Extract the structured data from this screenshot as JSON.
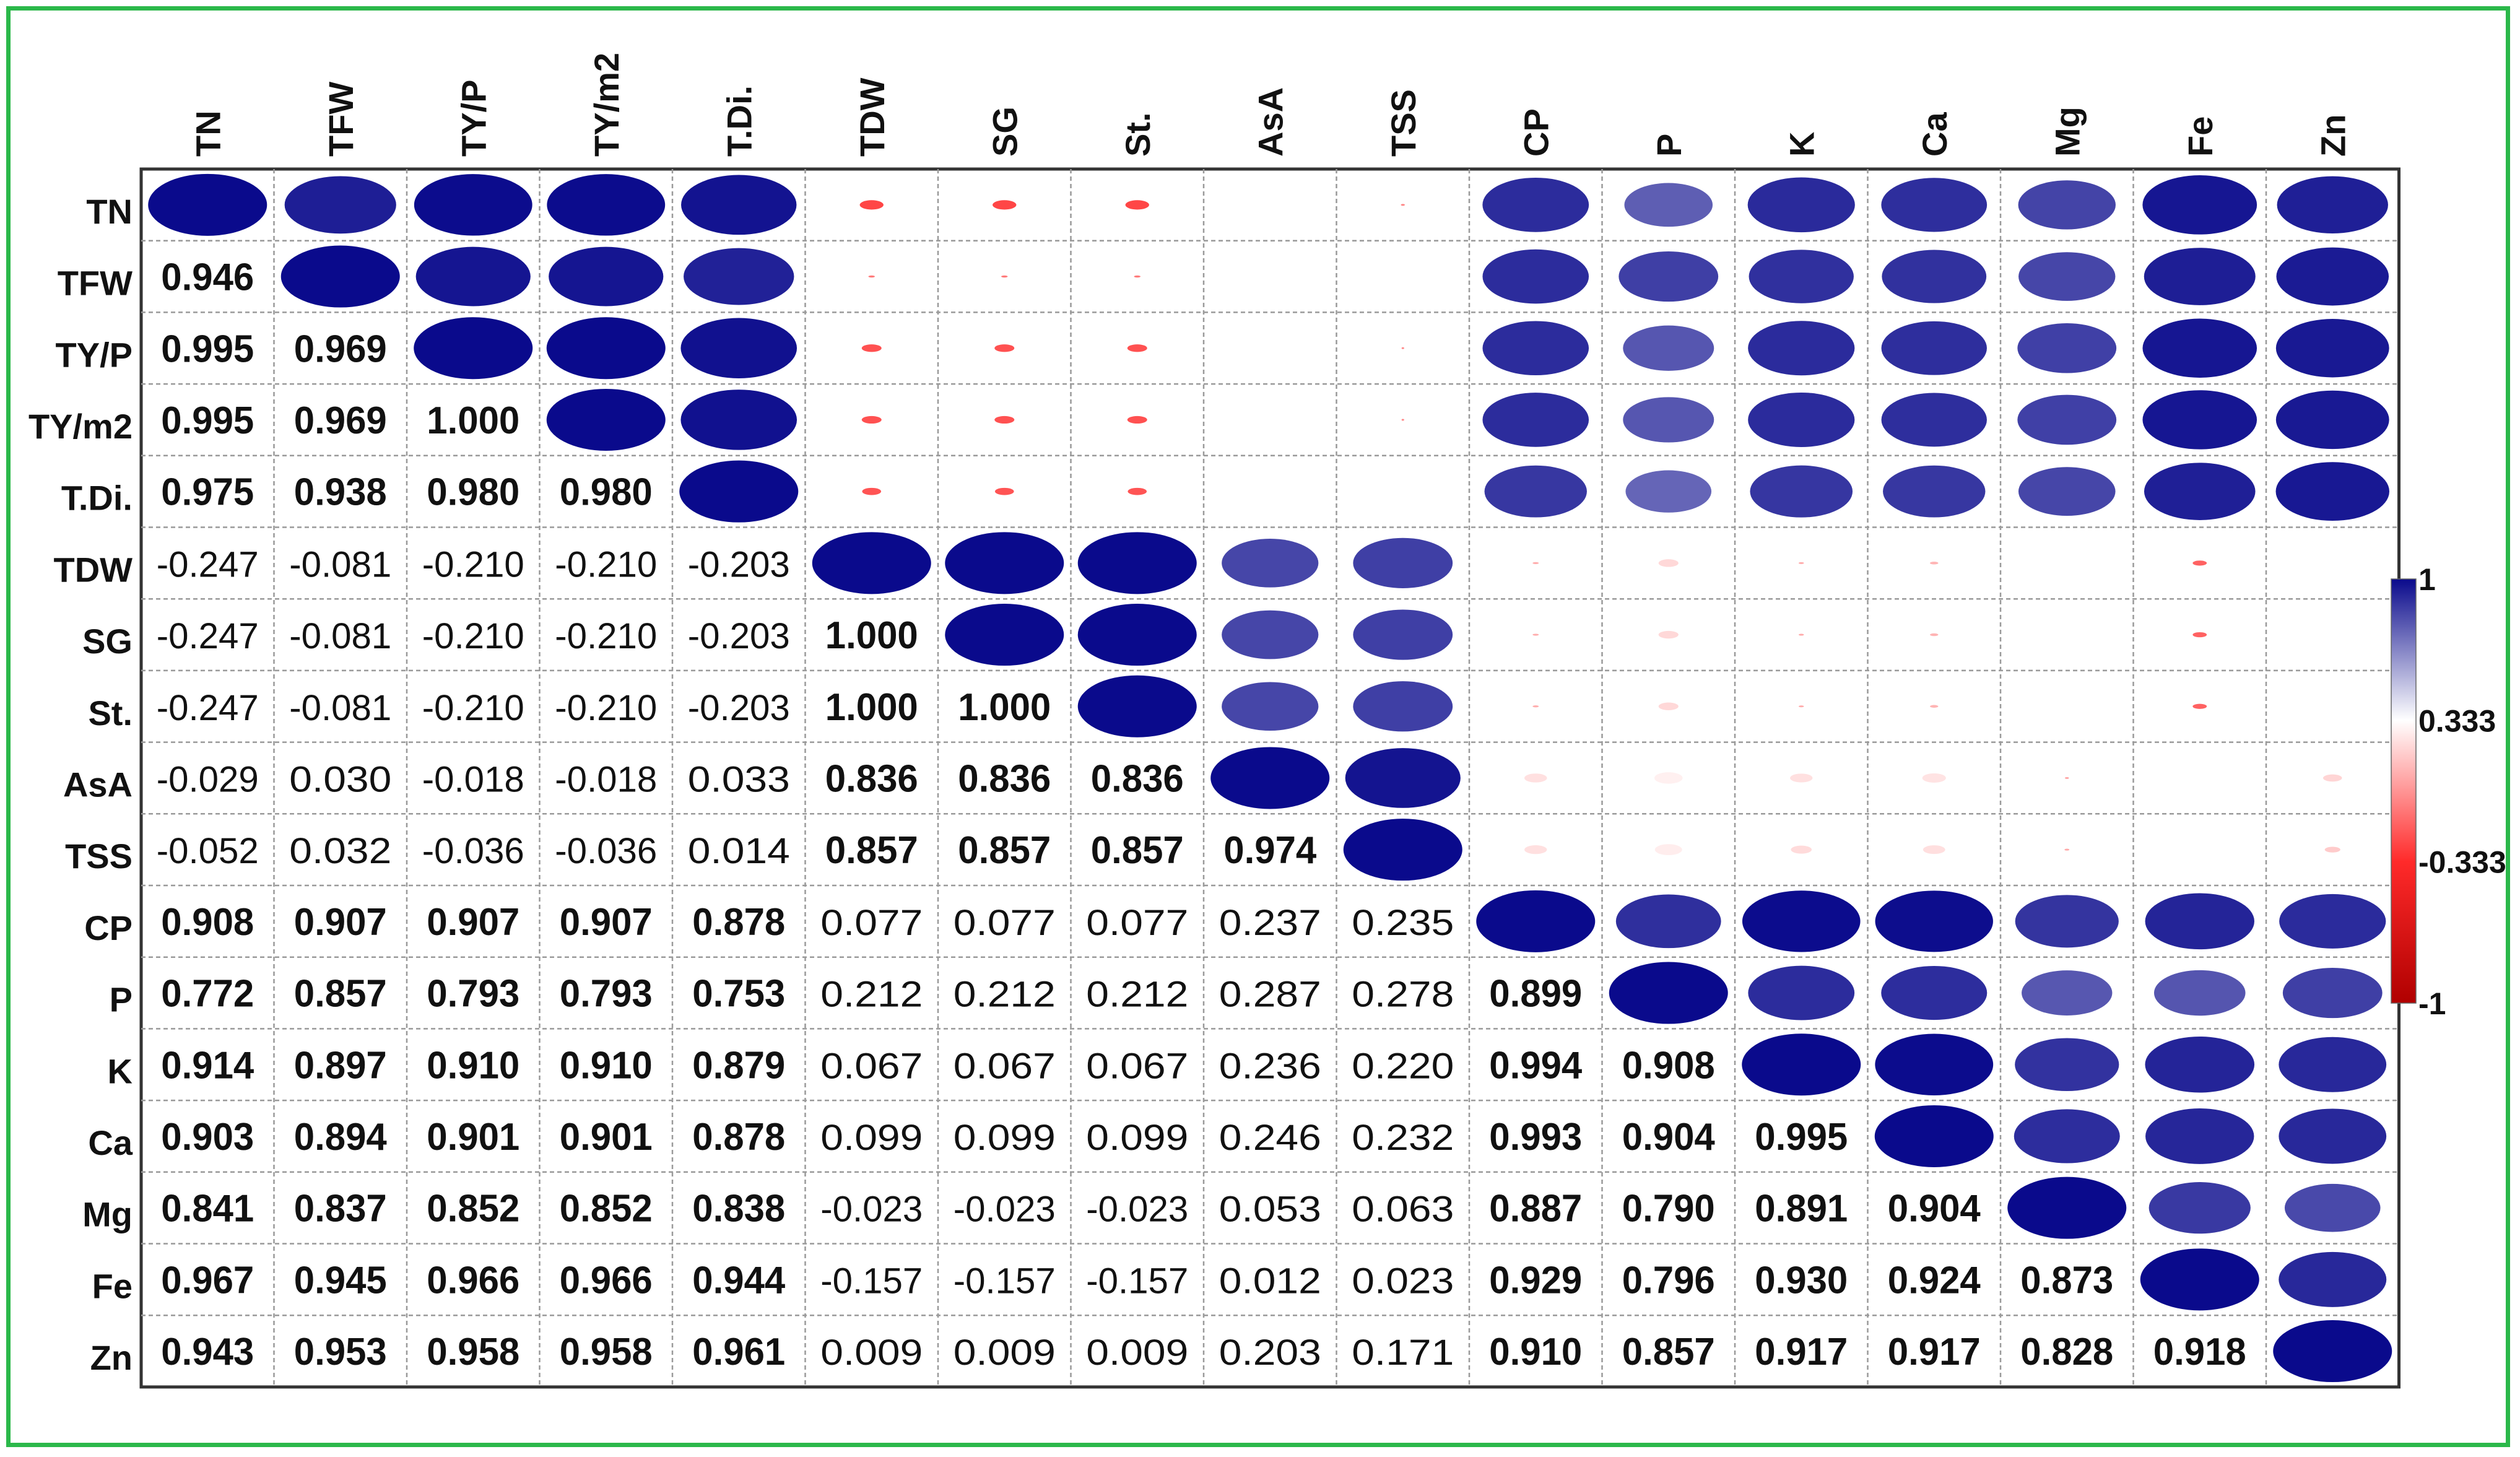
{
  "chart_data": {
    "type": "heatmap",
    "style": "correlation-matrix (ellipses in upper triangle, coefficients in lower triangle)",
    "variables": [
      "TN",
      "TFW",
      "TY/P",
      "TY/m2",
      "T.Di.",
      "TDW",
      "SG",
      "St.",
      "AsA",
      "TSS",
      "CP",
      "P",
      "K",
      "Ca",
      "Mg",
      "Fe",
      "Zn"
    ],
    "matrix": [
      [
        1,
        0.946,
        0.995,
        0.995,
        0.975,
        -0.247,
        -0.247,
        -0.247,
        -0.029,
        -0.052,
        0.908,
        0.772,
        0.914,
        0.903,
        0.841,
        0.967,
        0.943
      ],
      [
        0.946,
        1,
        0.969,
        0.969,
        0.938,
        -0.081,
        -0.081,
        -0.081,
        0.03,
        0.032,
        0.907,
        0.857,
        0.897,
        0.894,
        0.837,
        0.945,
        0.953
      ],
      [
        0.995,
        0.969,
        1,
        1.0,
        0.98,
        -0.21,
        -0.21,
        -0.21,
        -0.018,
        -0.036,
        0.907,
        0.793,
        0.91,
        0.901,
        0.852,
        0.966,
        0.958
      ],
      [
        0.995,
        0.969,
        1.0,
        1,
        0.98,
        -0.21,
        -0.21,
        -0.21,
        -0.018,
        -0.036,
        0.907,
        0.793,
        0.91,
        0.901,
        0.852,
        0.966,
        0.958
      ],
      [
        0.975,
        0.938,
        0.98,
        0.98,
        1,
        -0.203,
        -0.203,
        -0.203,
        0.033,
        0.014,
        0.878,
        0.753,
        0.879,
        0.878,
        0.838,
        0.944,
        0.961
      ],
      [
        -0.247,
        -0.081,
        -0.21,
        -0.21,
        -0.203,
        1,
        1.0,
        1.0,
        0.836,
        0.857,
        0.077,
        0.212,
        0.067,
        0.099,
        -0.023,
        -0.157,
        0.009
      ],
      [
        -0.247,
        -0.081,
        -0.21,
        -0.21,
        -0.203,
        1.0,
        1,
        1.0,
        0.836,
        0.857,
        0.077,
        0.212,
        0.067,
        0.099,
        -0.023,
        -0.157,
        0.009
      ],
      [
        -0.247,
        -0.081,
        -0.21,
        -0.21,
        -0.203,
        1.0,
        1.0,
        1,
        0.836,
        0.857,
        0.077,
        0.212,
        0.067,
        0.099,
        -0.023,
        -0.157,
        0.009
      ],
      [
        -0.029,
        0.03,
        -0.018,
        -0.018,
        0.033,
        0.836,
        0.836,
        0.836,
        1,
        0.974,
        0.237,
        0.287,
        0.236,
        0.246,
        0.053,
        0.012,
        0.203
      ],
      [
        -0.052,
        0.032,
        -0.036,
        -0.036,
        0.014,
        0.857,
        0.857,
        0.857,
        0.974,
        1,
        0.235,
        0.278,
        0.22,
        0.232,
        0.063,
        0.023,
        0.171
      ],
      [
        0.908,
        0.907,
        0.907,
        0.907,
        0.878,
        0.077,
        0.077,
        0.077,
        0.237,
        0.235,
        1,
        0.899,
        0.994,
        0.993,
        0.887,
        0.929,
        0.91
      ],
      [
        0.772,
        0.857,
        0.793,
        0.793,
        0.753,
        0.212,
        0.212,
        0.212,
        0.287,
        0.278,
        0.899,
        1,
        0.908,
        0.904,
        0.79,
        0.796,
        0.857
      ],
      [
        0.914,
        0.897,
        0.91,
        0.91,
        0.879,
        0.067,
        0.067,
        0.067,
        0.236,
        0.22,
        0.994,
        0.908,
        1,
        0.995,
        0.891,
        0.93,
        0.917
      ],
      [
        0.903,
        0.894,
        0.901,
        0.901,
        0.878,
        0.099,
        0.099,
        0.099,
        0.246,
        0.232,
        0.993,
        0.904,
        0.995,
        1,
        0.904,
        0.924,
        0.917
      ],
      [
        0.841,
        0.837,
        0.852,
        0.852,
        0.838,
        -0.023,
        -0.023,
        -0.023,
        0.053,
        0.063,
        0.887,
        0.79,
        0.891,
        0.904,
        1,
        0.873,
        0.828
      ],
      [
        0.967,
        0.945,
        0.966,
        0.966,
        0.944,
        -0.157,
        -0.157,
        -0.157,
        0.012,
        0.023,
        0.929,
        0.796,
        0.93,
        0.924,
        0.873,
        1,
        0.918
      ],
      [
        0.943,
        0.953,
        0.958,
        0.958,
        0.961,
        0.009,
        0.009,
        0.009,
        0.203,
        0.171,
        0.91,
        0.857,
        0.917,
        0.917,
        0.828,
        0.918,
        1
      ]
    ],
    "value_range": [
      -1,
      1
    ],
    "color_scale": {
      "stops": [
        -1,
        -0.333,
        0.333,
        1
      ],
      "labels": [
        "-1",
        "-0.333",
        "0.333",
        "1"
      ],
      "colors": [
        "#b00000",
        "#ff2a2a",
        "#ffffff",
        "#0a0a8c"
      ]
    },
    "bold_threshold": 0.7,
    "legend_position": "right"
  }
}
